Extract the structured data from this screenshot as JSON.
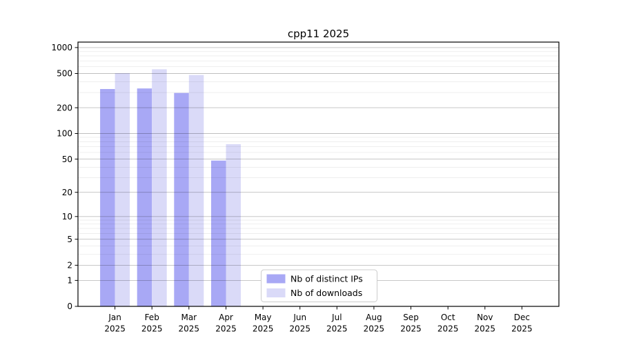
{
  "figure": {
    "background": "#ffffff",
    "spine_color": "#000000"
  },
  "chart_data": {
    "type": "bar",
    "title": "cpp11 2025",
    "categories": [
      "Jan",
      "Feb",
      "Mar",
      "Apr",
      "May",
      "Jun",
      "Jul",
      "Aug",
      "Sep",
      "Oct",
      "Nov",
      "Dec"
    ],
    "year": "2025",
    "series": [
      {
        "name": "Nb of distinct IPs",
        "color": "#a8a8f5",
        "values": [
          330,
          335,
          297,
          48,
          null,
          null,
          null,
          null,
          null,
          null,
          null,
          null
        ]
      },
      {
        "name": "Nb of downloads",
        "color": "#dadaf8",
        "values": [
          505,
          560,
          480,
          75,
          null,
          null,
          null,
          null,
          null,
          null,
          null,
          null
        ]
      }
    ],
    "y_axis": {
      "scale": "log1p",
      "ticks": [
        0,
        1,
        2,
        5,
        10,
        20,
        50,
        100,
        200,
        500,
        1000
      ],
      "minor_ticks": [
        3,
        4,
        6,
        7,
        8,
        9,
        30,
        40,
        60,
        70,
        80,
        90,
        300,
        400,
        600,
        700,
        800,
        900
      ],
      "ylim": [
        0,
        1100
      ]
    },
    "x_axis": {
      "label_lines": 2
    },
    "grid": {
      "major_color": "#bfbfbf",
      "minor_color": "#ececec",
      "on": true
    },
    "legend": {
      "position": "inside-bottom-center",
      "background": "#ffffff",
      "border_color": "#cccccc",
      "entries": [
        "Nb of distinct IPs",
        "Nb of downloads"
      ]
    }
  }
}
